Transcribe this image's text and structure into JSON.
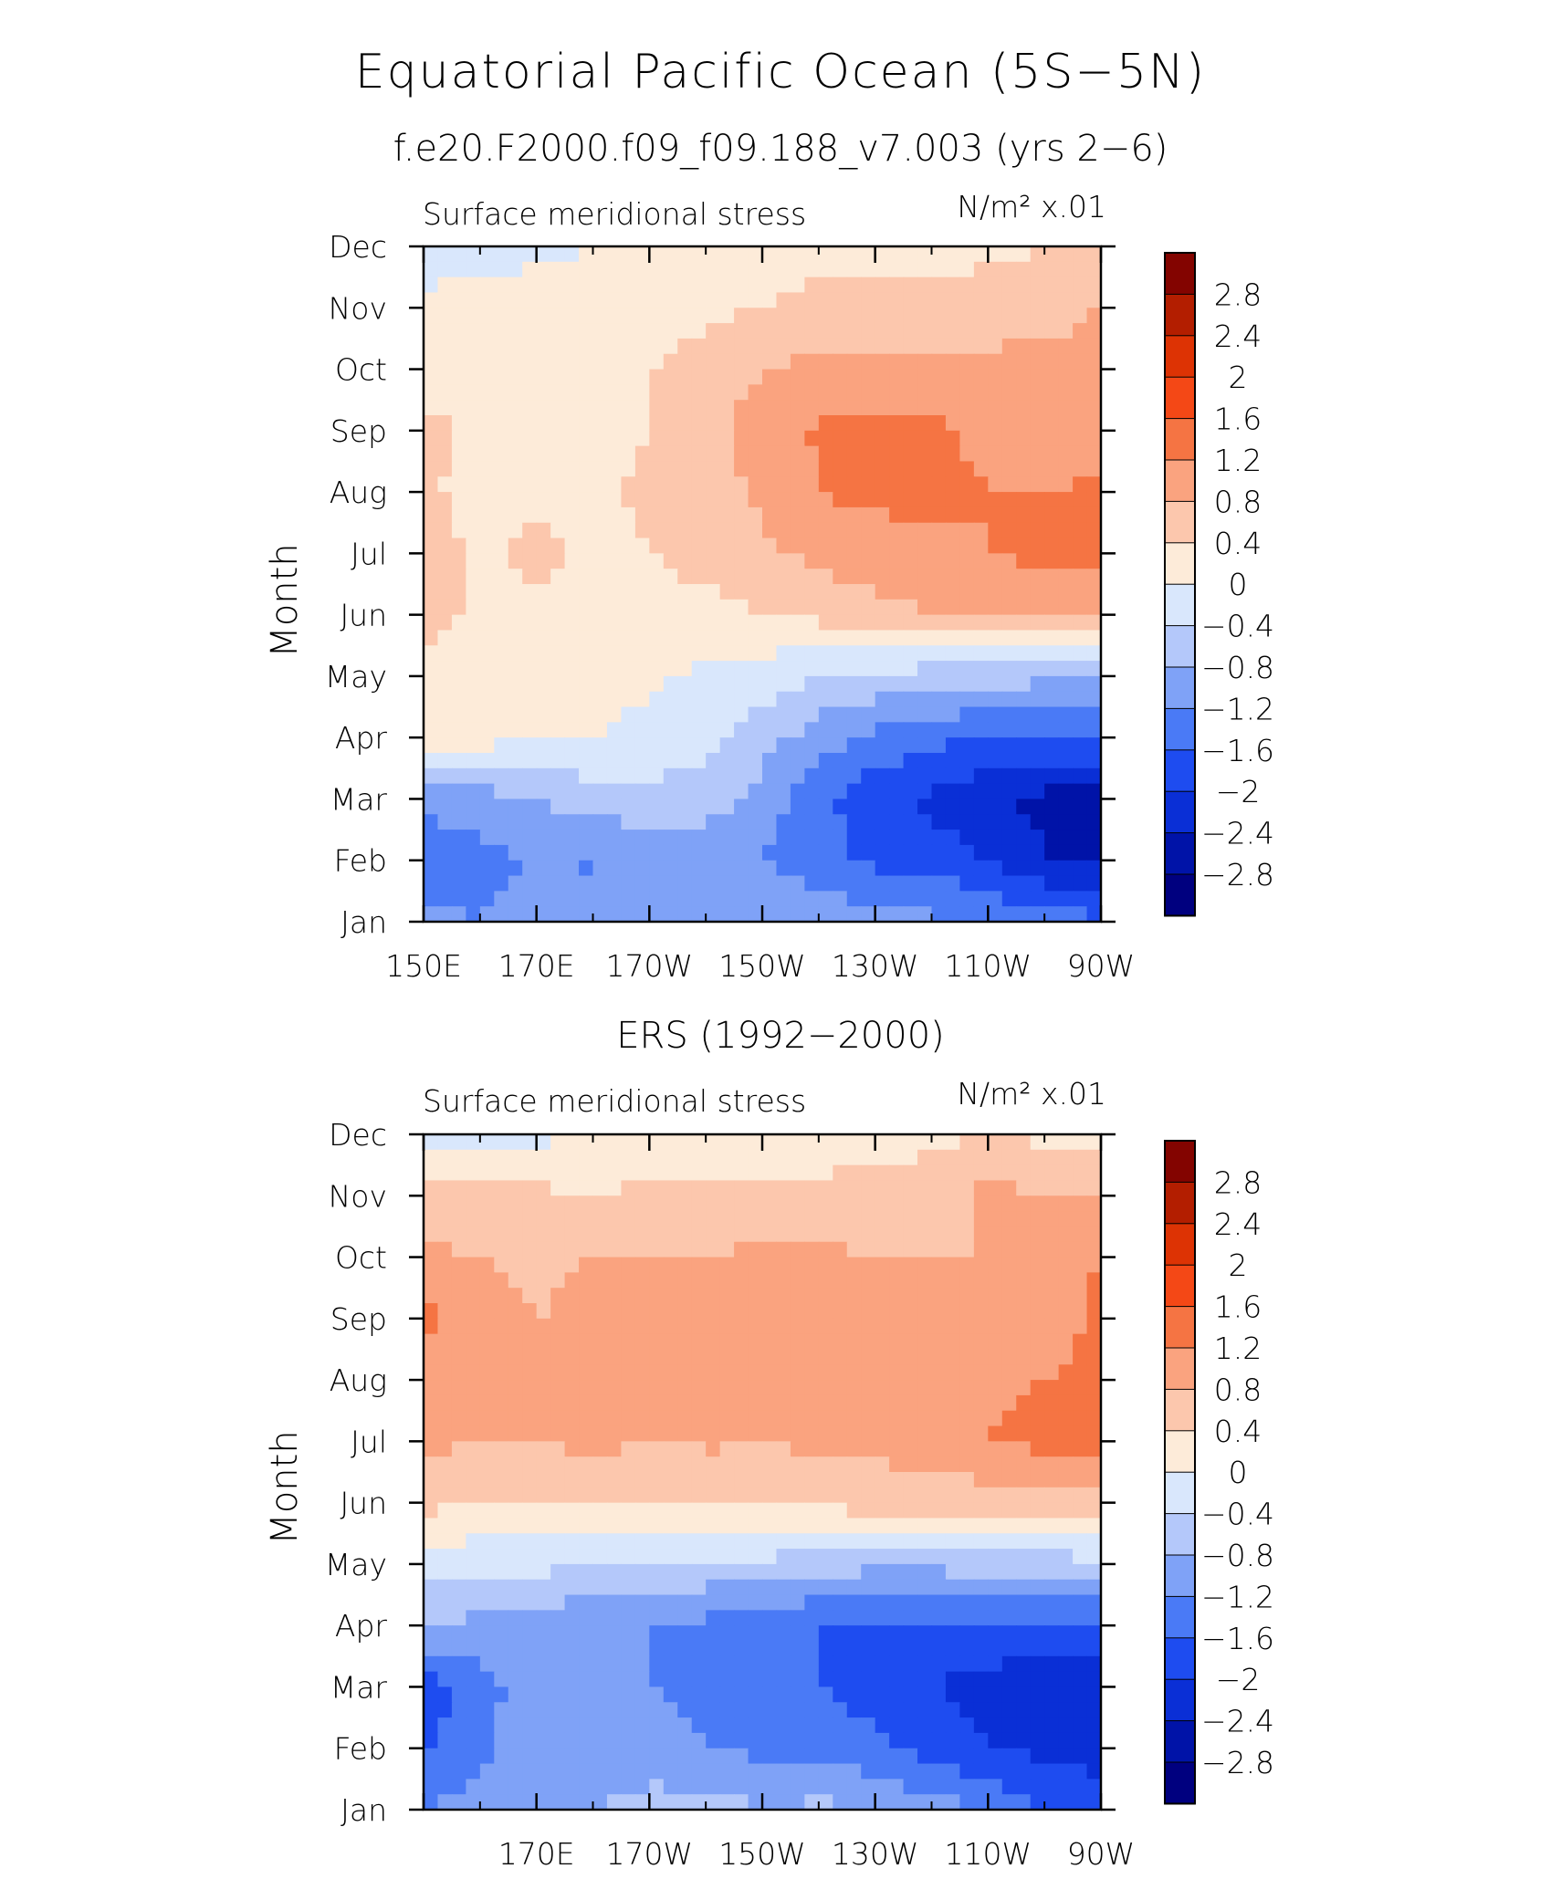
{
  "title": "Equatorial Pacific Ocean (5S−5N)",
  "chart_data": [
    {
      "type": "heatmap",
      "subtitle": "f.e20.F2000.f09_f09.188_v7.003 (yrs 2−6)",
      "left_label": "Surface meridional stress",
      "units_label": "N/m² x.01",
      "ylabel": "Month",
      "x_ticks": [
        "150E",
        "170E",
        "170W",
        "150W",
        "130W",
        "110W",
        "90W"
      ],
      "y_ticks": [
        "Jan",
        "Feb",
        "Mar",
        "Apr",
        "May",
        "Jun",
        "Jul",
        "Aug",
        "Sep",
        "Oct",
        "Nov",
        "Dec"
      ],
      "xlim": [
        150,
        270
      ],
      "ylim": [
        1,
        12
      ],
      "lon": [
        150,
        160,
        170,
        180,
        190,
        200,
        210,
        220,
        230,
        240,
        250,
        260,
        270
      ],
      "z": [
        [
          -1.1,
          -1.2,
          -1.0,
          -0.9,
          -0.8,
          -0.9,
          -0.9,
          -1.0,
          -1.0,
          -1.1,
          -1.2,
          -1.4,
          -1.5
        ],
        [
          -1.5,
          -1.3,
          -1.2,
          -1.25,
          -1.2,
          -1.2,
          -1.2,
          -1.4,
          -1.7,
          -1.8,
          -2.0,
          -2.4,
          -2.5
        ],
        [
          -1.1,
          -1.0,
          -0.8,
          -0.6,
          -0.5,
          -0.5,
          -1.0,
          -1.5,
          -1.9,
          -2.1,
          -2.3,
          -2.5,
          -2.6
        ],
        [
          0.2,
          0.15,
          0.1,
          0.0,
          -0.2,
          -0.3,
          -0.6,
          -1.0,
          -1.3,
          -1.5,
          -1.6,
          -1.7,
          -1.6
        ],
        [
          0.3,
          0.3,
          0.2,
          0.2,
          0.1,
          -0.1,
          -0.2,
          -0.4,
          -0.5,
          -0.6,
          -0.6,
          -0.7,
          -0.8
        ],
        [
          0.5,
          0.35,
          0.3,
          0.3,
          0.3,
          0.3,
          0.4,
          0.5,
          0.7,
          0.8,
          0.9,
          0.9,
          0.9
        ],
        [
          0.6,
          0.3,
          0.5,
          0.3,
          0.4,
          0.5,
          0.7,
          0.9,
          1.0,
          1.1,
          1.2,
          1.3,
          1.3
        ],
        [
          0.45,
          0.3,
          0.3,
          0.35,
          0.45,
          0.6,
          0.9,
          1.2,
          1.3,
          1.3,
          1.2,
          1.2,
          1.25
        ],
        [
          0.5,
          0.3,
          0.3,
          0.3,
          0.4,
          0.6,
          1.0,
          1.25,
          1.35,
          1.3,
          1.1,
          1.0,
          1.0
        ],
        [
          0.2,
          0.3,
          0.3,
          0.3,
          0.4,
          0.6,
          0.8,
          0.9,
          0.9,
          0.9,
          0.9,
          0.9,
          0.9
        ],
        [
          0.05,
          0.1,
          0.1,
          0.1,
          0.2,
          0.3,
          0.4,
          0.5,
          0.5,
          0.5,
          0.6,
          0.7,
          0.8
        ],
        [
          -0.1,
          -0.1,
          -0.05,
          0.0,
          0.1,
          0.15,
          0.2,
          0.3,
          0.3,
          0.3,
          0.3,
          0.4,
          0.5
        ]
      ]
    },
    {
      "type": "heatmap",
      "subtitle": "ERS (1992−2000)",
      "left_label": "Surface meridional stress",
      "units_label": "N/m² x.01",
      "ylabel": "Month",
      "x_ticks": [
        "170E",
        "170W",
        "150W",
        "130W",
        "110W",
        "90W"
      ],
      "y_ticks": [
        "Jan",
        "Feb",
        "Mar",
        "Apr",
        "May",
        "Jun",
        "Jul",
        "Aug",
        "Sep",
        "Oct",
        "Nov",
        "Dec"
      ],
      "xlim": [
        150,
        270
      ],
      "ylim": [
        1,
        12
      ],
      "lon": [
        150,
        160,
        170,
        180,
        190,
        200,
        210,
        220,
        230,
        240,
        250,
        260,
        270
      ],
      "z": [
        [
          -1.2,
          -1.0,
          -0.9,
          -0.8,
          -0.6,
          -0.6,
          -0.8,
          -0.7,
          -0.8,
          -1.0,
          -1.2,
          -1.6,
          -1.8
        ],
        [
          -1.7,
          -1.3,
          -0.9,
          -1.2,
          -1.1,
          -1.2,
          -1.3,
          -1.4,
          -1.5,
          -1.8,
          -2.0,
          -2.1,
          -2.2
        ],
        [
          -1.8,
          -1.4,
          -0.9,
          -1.0,
          -1.2,
          -1.3,
          -1.3,
          -1.6,
          -1.8,
          -2.0,
          -2.2,
          -2.3,
          -2.3
        ],
        [
          -0.8,
          -0.9,
          -1.0,
          -1.1,
          -1.2,
          -1.3,
          -1.4,
          -1.6,
          -1.6,
          -1.6,
          -1.6,
          -1.7,
          -1.6
        ],
        [
          -0.2,
          -0.3,
          -0.3,
          -0.4,
          -0.5,
          -0.5,
          -0.5,
          -0.6,
          -0.7,
          -0.7,
          -0.6,
          -0.6,
          -0.5
        ],
        [
          0.5,
          0.4,
          0.5,
          0.4,
          0.4,
          0.5,
          0.5,
          0.5,
          0.6,
          0.6,
          0.6,
          0.6,
          0.6
        ],
        [
          0.9,
          0.8,
          0.8,
          0.9,
          0.8,
          0.85,
          0.8,
          0.9,
          0.9,
          1.0,
          1.2,
          1.3,
          1.3
        ],
        [
          1.0,
          0.9,
          0.8,
          0.9,
          1.0,
          1.0,
          0.9,
          1.0,
          1.0,
          0.9,
          1.1,
          1.2,
          1.3
        ],
        [
          1.3,
          1.0,
          0.8,
          0.9,
          1.0,
          1.0,
          0.9,
          0.9,
          0.9,
          0.8,
          0.9,
          1.0,
          1.3
        ],
        [
          0.9,
          0.8,
          0.7,
          0.8,
          0.8,
          0.8,
          0.9,
          0.9,
          0.8,
          0.8,
          0.8,
          0.9,
          1.2
        ],
        [
          0.5,
          0.5,
          0.5,
          0.4,
          0.5,
          0.5,
          0.5,
          0.5,
          0.5,
          0.6,
          0.9,
          0.8,
          0.8
        ],
        [
          -0.1,
          -0.1,
          -0.1,
          0.0,
          0.1,
          0.2,
          0.2,
          0.2,
          0.3,
          0.3,
          0.4,
          0.3,
          0.3
        ]
      ]
    }
  ],
  "colorbar": {
    "labels": [
      "2.8",
      "2.4",
      "2",
      "1.6",
      "1.2",
      "0.8",
      "0.4",
      "0",
      "−0.4",
      "−0.8",
      "−1.2",
      "−1.6",
      "−2",
      "−2.4",
      "−2.8"
    ],
    "levels": [
      -2.8,
      -2.4,
      -2.0,
      -1.6,
      -1.2,
      -0.8,
      -0.4,
      0,
      0.4,
      0.8,
      1.2,
      1.6,
      2.0,
      2.4,
      2.8
    ],
    "colors": [
      "#00007f",
      "#0013a8",
      "#0a2fd6",
      "#1e4cf0",
      "#4a7af6",
      "#7fa2f7",
      "#b4c8fa",
      "#d9e7fc",
      "#fdebd9",
      "#fcc7ad",
      "#faa37f",
      "#f57443",
      "#f44816",
      "#dd3304",
      "#b31e00",
      "#830400"
    ]
  }
}
